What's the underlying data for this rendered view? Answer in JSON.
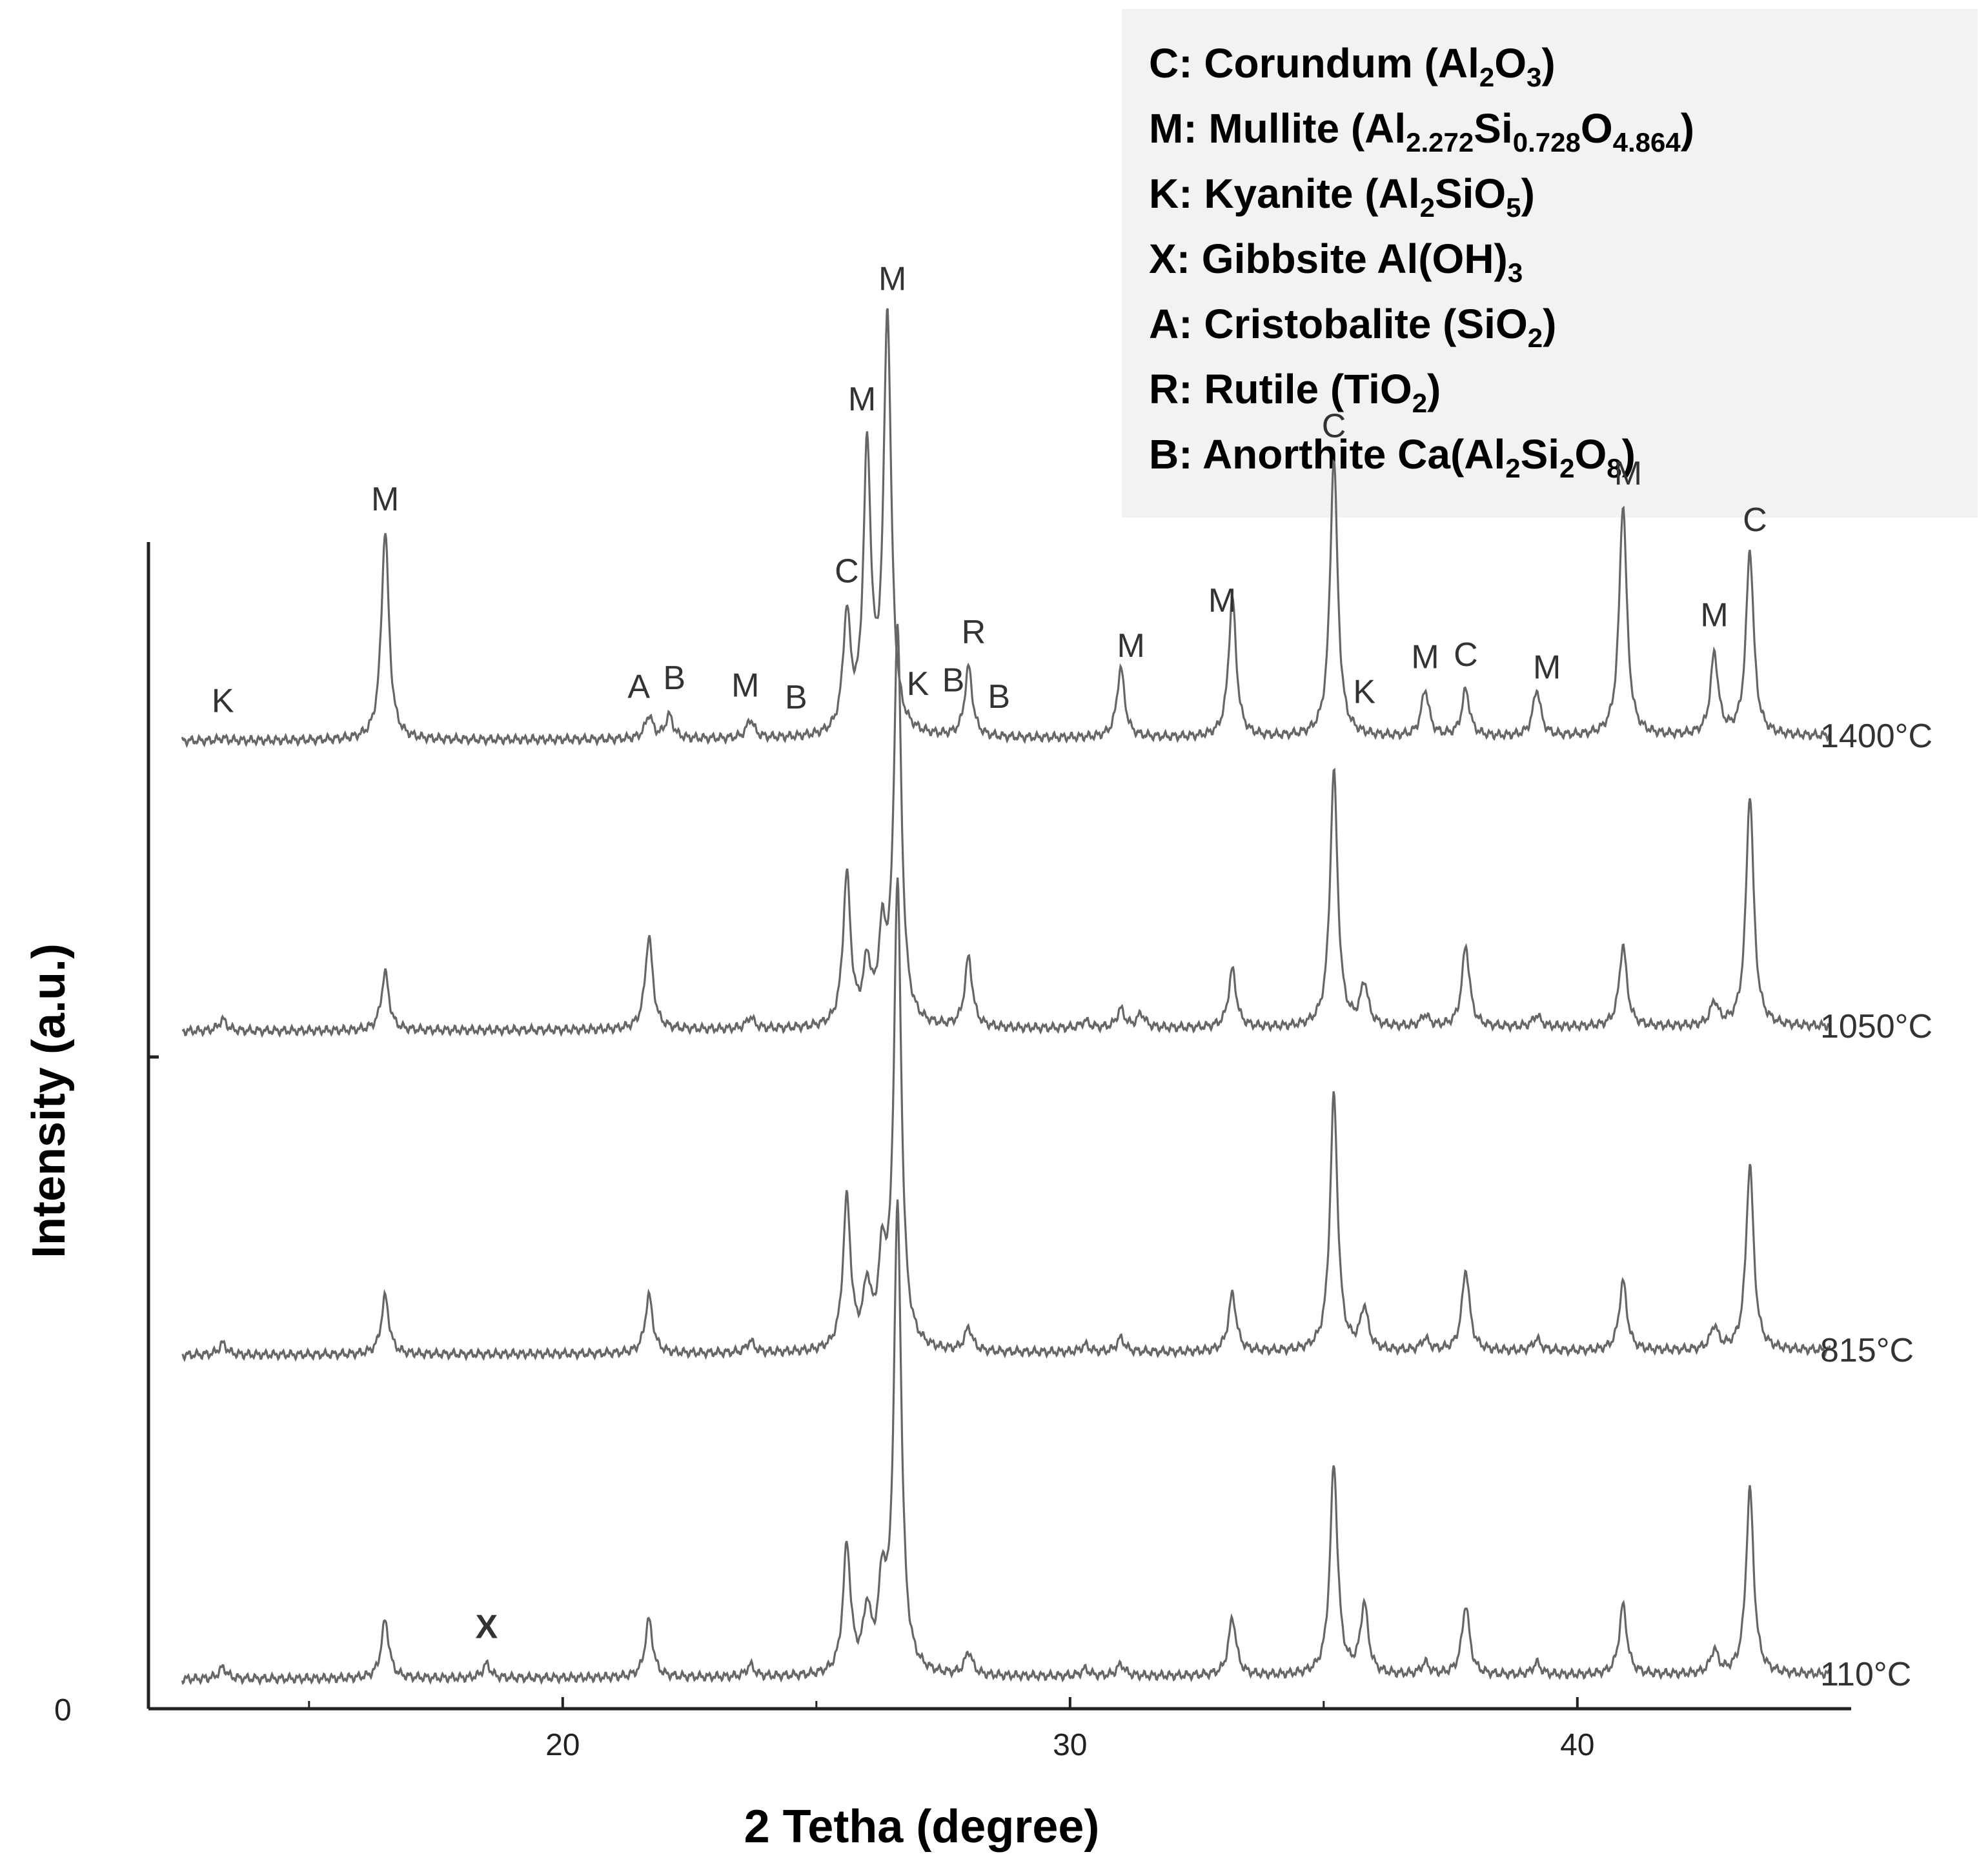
{
  "chart_data": {
    "type": "line",
    "title": "",
    "xlabel": "2 Tetha (degree)",
    "ylabel": "Intensity (a.u.)",
    "xlim": [
      12,
      45
    ],
    "x_ticks": [
      20,
      30,
      40
    ],
    "x_minor_ticks": [
      15,
      25,
      35
    ],
    "y_tick_labels": [
      "0"
    ],
    "legend_placement": "top-right",
    "legend": [
      {
        "prefix": "C: Corundum  (",
        "formula": [
          [
            "Al",
            ""
          ],
          [
            "2",
            "sub"
          ],
          [
            "O",
            ""
          ],
          [
            "3",
            "sub"
          ]
        ],
        "suffix": ")"
      },
      {
        "prefix": "M: Mullite  (",
        "formula": [
          [
            "Al",
            ""
          ],
          [
            "2.272",
            "sub"
          ],
          [
            "Si",
            ""
          ],
          [
            "0.728",
            "sub"
          ],
          [
            "O",
            ""
          ],
          [
            "4.864",
            "sub"
          ]
        ],
        "suffix": ")"
      },
      {
        "prefix": "K: Kyanite  (",
        "formula": [
          [
            "Al",
            ""
          ],
          [
            "2",
            "sub"
          ],
          [
            "SiO",
            ""
          ],
          [
            "5",
            "sub"
          ]
        ],
        "suffix": ")"
      },
      {
        "prefix": "X: Gibbsite  Al(OH)",
        "formula": [
          [
            "3",
            "sub"
          ]
        ],
        "suffix": ""
      },
      {
        "prefix": "A: Cristobalite  (SiO",
        "formula": [
          [
            "2",
            "sub"
          ]
        ],
        "suffix": ")"
      },
      {
        "prefix": "R: Rutile (TiO",
        "formula": [
          [
            "2",
            "sub"
          ]
        ],
        "suffix": ")"
      },
      {
        "prefix": "B: Anorthite  Ca(Al",
        "formula": [
          [
            "2",
            "sub"
          ],
          [
            "Si",
            ""
          ],
          [
            "2",
            "sub"
          ],
          [
            "O",
            ""
          ],
          [
            "8",
            "sub"
          ]
        ],
        "suffix": ")"
      }
    ],
    "series": [
      {
        "name": "1400°C",
        "peaks": [
          [
            13.3,
            0.01
          ],
          [
            16.5,
            0.9
          ],
          [
            21.7,
            0.1
          ],
          [
            22.1,
            0.1
          ],
          [
            23.7,
            0.08
          ],
          [
            25.6,
            0.5
          ],
          [
            26.0,
            1.2
          ],
          [
            26.4,
            1.8
          ],
          [
            28.0,
            0.3
          ],
          [
            31.0,
            0.3
          ],
          [
            33.2,
            0.6
          ],
          [
            35.2,
            1.2
          ],
          [
            37.0,
            0.2
          ],
          [
            37.8,
            0.2
          ],
          [
            39.2,
            0.2
          ],
          [
            40.9,
            1.0
          ],
          [
            42.7,
            0.35
          ],
          [
            43.4,
            0.8
          ]
        ],
        "peak_labels": [
          [
            "K",
            13.3
          ],
          [
            "M",
            16.5
          ],
          [
            "A",
            21.5
          ],
          [
            "B",
            22.2
          ],
          [
            "M",
            23.6
          ],
          [
            "B",
            24.6
          ],
          [
            "C",
            25.6
          ],
          [
            "M",
            25.9
          ],
          [
            "M",
            26.5
          ],
          [
            "K",
            27.0
          ],
          [
            "B",
            27.7
          ],
          [
            "R",
            28.1
          ],
          [
            "B",
            28.6
          ],
          [
            "M",
            31.2
          ],
          [
            "M",
            33.0
          ],
          [
            "C",
            35.2
          ],
          [
            "K",
            35.8
          ],
          [
            "M",
            37.0
          ],
          [
            "C",
            37.8
          ],
          [
            "M",
            39.4
          ],
          [
            "M",
            41.0
          ],
          [
            "M",
            42.7
          ],
          [
            "C",
            43.5
          ]
        ]
      },
      {
        "name": "1050°C",
        "peaks": [
          [
            13.3,
            0.05
          ],
          [
            16.5,
            0.25
          ],
          [
            21.7,
            0.4
          ],
          [
            23.7,
            0.05
          ],
          [
            25.6,
            0.65
          ],
          [
            26.0,
            0.25
          ],
          [
            26.3,
            0.35
          ],
          [
            26.6,
            1.7
          ],
          [
            28.0,
            0.3
          ],
          [
            30.3,
            0.03
          ],
          [
            31.0,
            0.08
          ],
          [
            31.4,
            0.06
          ],
          [
            33.2,
            0.25
          ],
          [
            35.2,
            1.1
          ],
          [
            35.8,
            0.18
          ],
          [
            37.0,
            0.05
          ],
          [
            37.8,
            0.35
          ],
          [
            39.2,
            0.05
          ],
          [
            40.9,
            0.35
          ],
          [
            42.7,
            0.1
          ],
          [
            43.4,
            1.0
          ]
        ],
        "peak_labels": []
      },
      {
        "name": "815°C",
        "peaks": [
          [
            13.3,
            0.05
          ],
          [
            16.5,
            0.25
          ],
          [
            21.7,
            0.25
          ],
          [
            23.7,
            0.05
          ],
          [
            25.6,
            0.65
          ],
          [
            26.0,
            0.25
          ],
          [
            26.3,
            0.35
          ],
          [
            26.6,
            2.0
          ],
          [
            28.0,
            0.1
          ],
          [
            30.3,
            0.03
          ],
          [
            31.0,
            0.06
          ],
          [
            33.2,
            0.25
          ],
          [
            35.2,
            1.1
          ],
          [
            35.8,
            0.18
          ],
          [
            37.0,
            0.05
          ],
          [
            37.8,
            0.35
          ],
          [
            39.2,
            0.05
          ],
          [
            40.9,
            0.3
          ],
          [
            42.7,
            0.1
          ],
          [
            43.4,
            0.8
          ]
        ],
        "peak_labels": []
      },
      {
        "name": "110°C",
        "peaks": [
          [
            13.3,
            0.05
          ],
          [
            16.5,
            0.25
          ],
          [
            18.5,
            0.06
          ],
          [
            21.7,
            0.25
          ],
          [
            23.7,
            0.05
          ],
          [
            25.6,
            0.55
          ],
          [
            26.0,
            0.25
          ],
          [
            26.3,
            0.35
          ],
          [
            26.6,
            2.0
          ],
          [
            28.0,
            0.1
          ],
          [
            30.3,
            0.03
          ],
          [
            31.0,
            0.05
          ],
          [
            33.2,
            0.25
          ],
          [
            35.2,
            0.9
          ],
          [
            35.8,
            0.3
          ],
          [
            37.0,
            0.05
          ],
          [
            37.8,
            0.3
          ],
          [
            39.2,
            0.05
          ],
          [
            40.9,
            0.3
          ],
          [
            42.7,
            0.1
          ],
          [
            43.4,
            0.8
          ]
        ],
        "peak_labels": [
          [
            "X",
            18.5
          ]
        ]
      }
    ]
  }
}
